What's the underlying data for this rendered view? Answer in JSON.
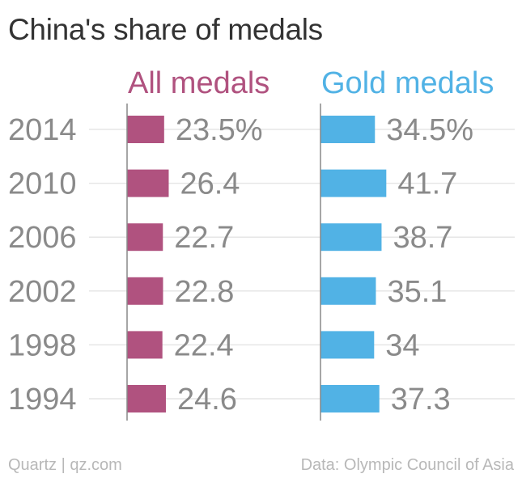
{
  "chart_data": {
    "type": "bar",
    "orientation": "horizontal",
    "title": "China's share of medals",
    "categories": [
      "2014",
      "2010",
      "2006",
      "2002",
      "1998",
      "1994"
    ],
    "series": [
      {
        "name": "All medals",
        "values": [
          23.5,
          26.4,
          22.7,
          22.8,
          22.4,
          24.6
        ],
        "labels": [
          "23.5%",
          "26.4",
          "22.7",
          "22.8",
          "22.4",
          "24.6"
        ],
        "color": "#b0527f"
      },
      {
        "name": "Gold medals",
        "values": [
          34.5,
          41.7,
          38.7,
          35.1,
          34,
          37.3
        ],
        "labels": [
          "34.5%",
          "41.7",
          "38.7",
          "35.1",
          "34",
          "37.3"
        ],
        "color": "#51b2e5"
      }
    ],
    "xlabel": "",
    "ylabel": "",
    "grid": true
  },
  "footer": {
    "brand": "Quartz | qz.com",
    "source": "Data: Olympic Council of Asia"
  },
  "colors": {
    "title": "#333333",
    "axis": "#888888",
    "grid": "#e6e6e6",
    "label": "#8a8a8a",
    "footer": "#b8b8b8"
  }
}
